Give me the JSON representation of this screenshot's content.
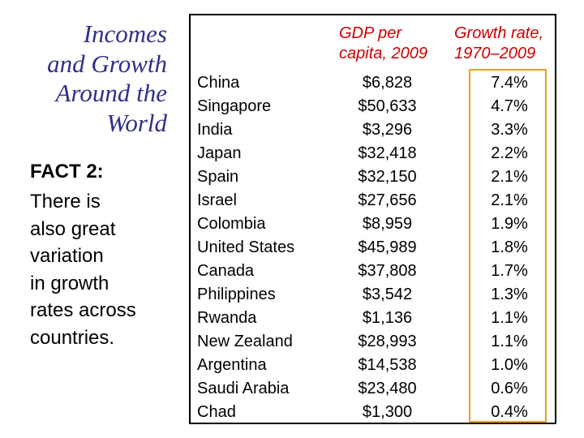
{
  "slide": {
    "title_lines": [
      "Incomes",
      "and Growth",
      "Around the",
      "World"
    ],
    "fact_heading": "FACT 2:",
    "fact_lines": [
      "There is",
      "also great",
      "variation",
      "in growth",
      "rates across",
      "countries."
    ]
  },
  "table": {
    "header_gdp": [
      "GDP per",
      "capita, 2009"
    ],
    "header_growth": [
      "Growth rate,",
      "1970–2009"
    ],
    "rows": [
      {
        "country": "China",
        "gdp": "$6,828",
        "growth": "7.4%"
      },
      {
        "country": "Singapore",
        "gdp": "$50,633",
        "growth": "4.7%"
      },
      {
        "country": "India",
        "gdp": "$3,296",
        "growth": "3.3%"
      },
      {
        "country": "Japan",
        "gdp": "$32,418",
        "growth": "2.2%"
      },
      {
        "country": "Spain",
        "gdp": "$32,150",
        "growth": "2.1%"
      },
      {
        "country": "Israel",
        "gdp": "$27,656",
        "growth": "2.1%"
      },
      {
        "country": "Colombia",
        "gdp": "$8,959",
        "growth": "1.9%"
      },
      {
        "country": "United States",
        "gdp": "$45,989",
        "growth": "1.8%"
      },
      {
        "country": "Canada",
        "gdp": "$37,808",
        "growth": "1.7%"
      },
      {
        "country": "Philippines",
        "gdp": "$3,542",
        "growth": "1.3%"
      },
      {
        "country": "Rwanda",
        "gdp": "$1,136",
        "growth": "1.1%"
      },
      {
        "country": "New Zealand",
        "gdp": "$28,993",
        "growth": "1.1%"
      },
      {
        "country": "Argentina",
        "gdp": "$14,538",
        "growth": "1.0%"
      },
      {
        "country": "Saudi Arabia",
        "gdp": "$23,480",
        "growth": "0.6%"
      },
      {
        "country": "Chad",
        "gdp": "$1,300",
        "growth": "0.4%"
      }
    ]
  },
  "colors": {
    "title": "#2f2f8a",
    "header": "#cc0000",
    "highlight_border": "#f0a020"
  }
}
